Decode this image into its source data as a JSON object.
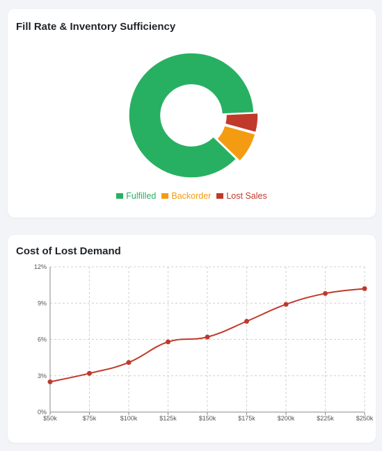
{
  "chart_data": [
    {
      "type": "pie",
      "title": "Fill Rate & Inventory Sufficiency",
      "categories": [
        "Fulfilled",
        "Backorder",
        "Lost Sales"
      ],
      "values": [
        87,
        8,
        5
      ],
      "colors": [
        "#28b062",
        "#f39c12",
        "#c0392b"
      ],
      "donut": true,
      "legend_position": "bottom"
    },
    {
      "type": "line",
      "title": "Cost of Lost Demand",
      "categories": [
        "$50k",
        "$75k",
        "$100k",
        "$125k",
        "$150k",
        "$175k",
        "$200k",
        "$225k",
        "$250k"
      ],
      "series": [
        {
          "values": [
            2.5,
            3.2,
            4.1,
            5.8,
            6.2,
            7.5,
            8.9,
            9.8,
            10.2
          ],
          "color": "#c0392b"
        }
      ],
      "ylim": [
        0,
        12
      ],
      "yticks": [
        "0%",
        "3%",
        "6%",
        "9%",
        "12%"
      ],
      "ytick_values": [
        0,
        3,
        6,
        9,
        12
      ],
      "grid": true
    }
  ]
}
